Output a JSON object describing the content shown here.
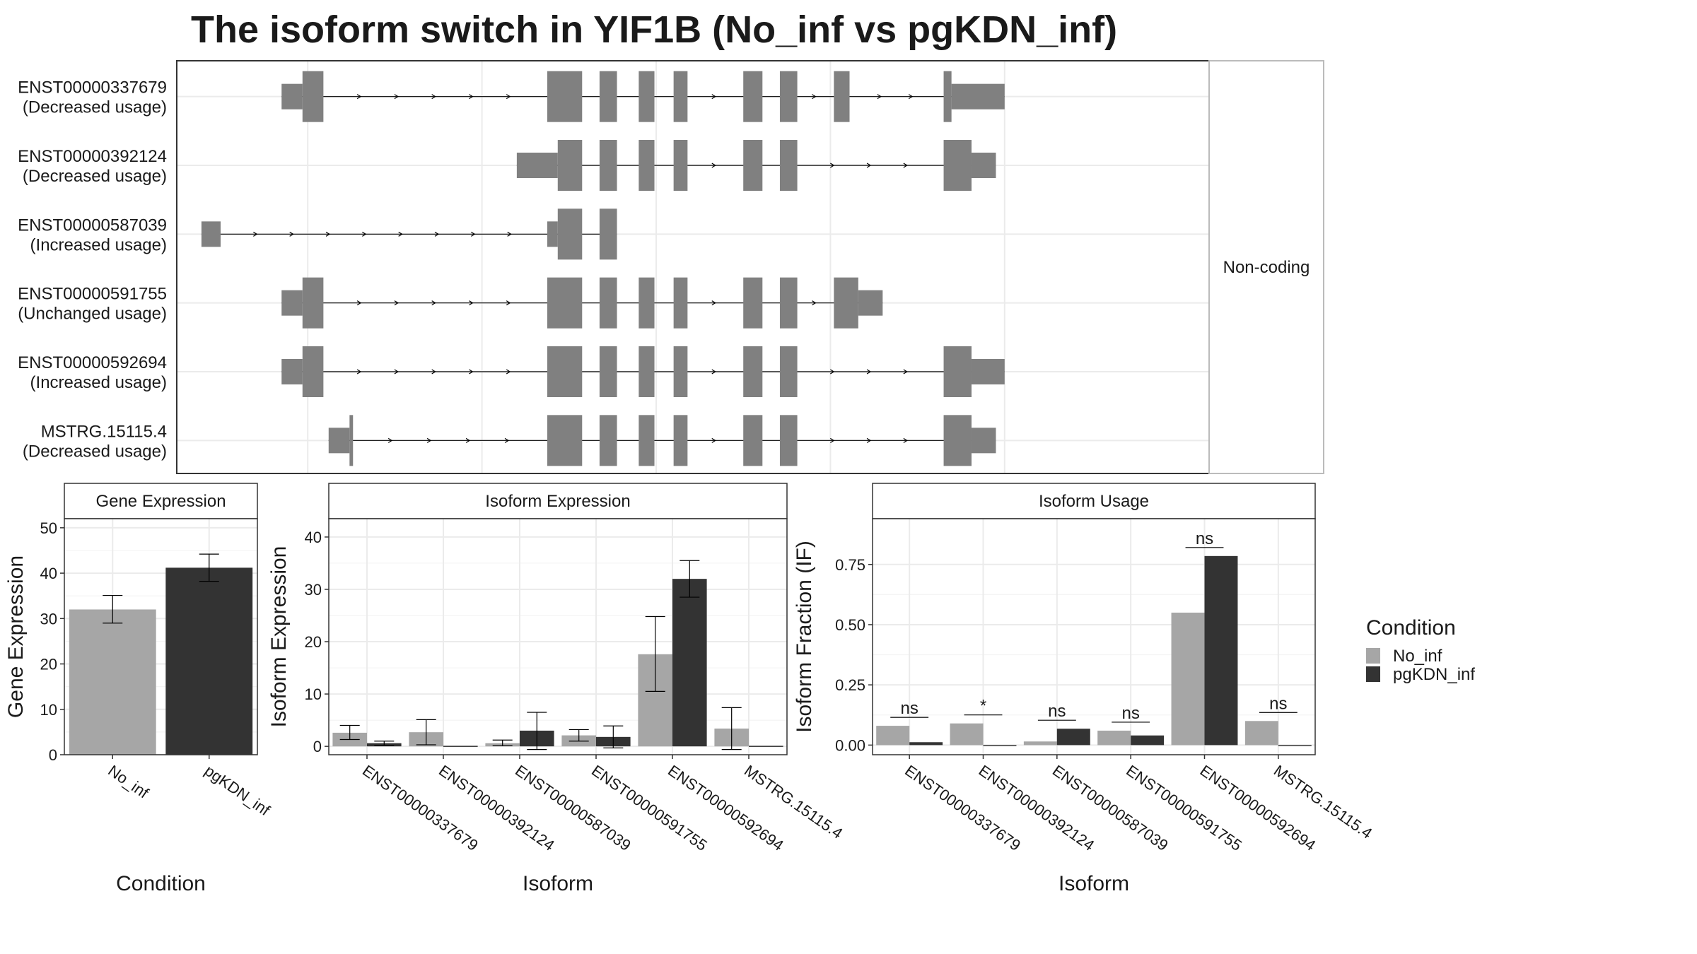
{
  "title": "The isoform switch in YIF1B (No_inf vs pgKDN_inf)",
  "colors": {
    "No_inf": "#a6a6a6",
    "pgKDN_inf": "#333333",
    "exon": "#808080",
    "grid": "#ebebeb",
    "panel_border": "#333333"
  },
  "transcript_panel": {
    "coding_label": "Non-coding",
    "x_range": [
      0,
      100
    ],
    "x_gridlines": [
      10,
      30,
      50,
      70,
      90
    ],
    "transcripts": [
      {
        "id": "ENST00000337679",
        "usage": "(Decreased usage)",
        "exons": [
          [
            7,
            9.4,
            0.5
          ],
          [
            9.4,
            11.8,
            1
          ],
          [
            37.5,
            41.5,
            1
          ],
          [
            43.5,
            45.5,
            1
          ],
          [
            48,
            49.8,
            1
          ],
          [
            52,
            53.6,
            1
          ],
          [
            60,
            62.2,
            1
          ],
          [
            64.2,
            66.2,
            1
          ],
          [
            70.4,
            72.2,
            1
          ],
          [
            83,
            83.9,
            1
          ],
          [
            83.9,
            90,
            0.5
          ]
        ],
        "intron_arrows": 13
      },
      {
        "id": "ENST00000392124",
        "usage": "(Decreased usage)",
        "exons": [
          [
            34,
            38.7,
            0.5
          ],
          [
            38.7,
            41.5,
            1
          ],
          [
            43.5,
            45.5,
            1
          ],
          [
            48,
            49.8,
            1
          ],
          [
            52,
            53.6,
            1
          ],
          [
            60,
            62.2,
            1
          ],
          [
            64.2,
            66.2,
            1
          ],
          [
            83,
            86.2,
            1
          ],
          [
            86.2,
            89,
            0.5
          ]
        ],
        "intron_arrows": 8
      },
      {
        "id": "ENST00000587039",
        "usage": "(Increased usage)",
        "exons": [
          [
            -2.2,
            0,
            0.5
          ],
          [
            37.5,
            38.7,
            0.5
          ],
          [
            38.7,
            41.5,
            1
          ],
          [
            43.5,
            45.5,
            1
          ]
        ],
        "intron_arrows": 8
      },
      {
        "id": "ENST00000591755",
        "usage": "(Unchanged usage)",
        "exons": [
          [
            7,
            9.4,
            0.5
          ],
          [
            9.4,
            11.8,
            1
          ],
          [
            37.5,
            41.5,
            1
          ],
          [
            43.5,
            45.5,
            1
          ],
          [
            48,
            49.8,
            1
          ],
          [
            52,
            53.6,
            1
          ],
          [
            60,
            62.2,
            1
          ],
          [
            64.2,
            66.2,
            1
          ],
          [
            70.4,
            73.2,
            1
          ],
          [
            73.2,
            76,
            0.5
          ]
        ],
        "intron_arrows": 8
      },
      {
        "id": "ENST00000592694",
        "usage": "(Increased usage)",
        "exons": [
          [
            7,
            9.4,
            0.5
          ],
          [
            9.4,
            11.8,
            1
          ],
          [
            37.5,
            41.5,
            1
          ],
          [
            43.5,
            45.5,
            1
          ],
          [
            48,
            49.8,
            1
          ],
          [
            52,
            53.6,
            1
          ],
          [
            60,
            62.2,
            1
          ],
          [
            64.2,
            66.2,
            1
          ],
          [
            83,
            86.2,
            1
          ],
          [
            86.2,
            90,
            0.5
          ]
        ],
        "intron_arrows": 13
      },
      {
        "id": "MSTRG.15115.4",
        "usage": "(Decreased usage)",
        "exons": [
          [
            12.4,
            14.8,
            0.5
          ],
          [
            14.8,
            15.2,
            1
          ],
          [
            37.5,
            41.5,
            1
          ],
          [
            43.5,
            45.5,
            1
          ],
          [
            48,
            49.8,
            1
          ],
          [
            52,
            53.6,
            1
          ],
          [
            60,
            62.2,
            1
          ],
          [
            64.2,
            66.2,
            1
          ],
          [
            83,
            86.2,
            1
          ],
          [
            86.2,
            89,
            0.5
          ]
        ],
        "intron_arrows": 12
      }
    ]
  },
  "chart_data": [
    {
      "type": "bar",
      "title": "Gene Expression",
      "xlabel": "Condition",
      "ylabel": "Gene Expression",
      "categories": [
        "No_inf",
        "pgKDN_inf"
      ],
      "values": [
        32,
        41.2
      ],
      "error_bars": [
        [
          29,
          35.1
        ],
        [
          38.2,
          44.2
        ]
      ],
      "ylim": [
        0,
        52
      ],
      "yticks": [
        "0",
        "10",
        "20",
        "30",
        "40",
        "50"
      ],
      "grid": true
    },
    {
      "type": "bar",
      "title": "Isoform Expression",
      "xlabel": "Isoform",
      "ylabel": "Isoform Expression",
      "categories": [
        "ENST00000337679",
        "ENST00000392124",
        "ENST00000587039",
        "ENST00000591755",
        "ENST00000592694",
        "MSTRG.15115.4"
      ],
      "series": [
        {
          "name": "No_inf",
          "values": [
            2.6,
            2.7,
            0.6,
            2.1,
            17.6,
            3.4
          ],
          "error_bars": [
            [
              1.3,
              4.0
            ],
            [
              0.3,
              5.1
            ],
            [
              0.1,
              1.2
            ],
            [
              1.0,
              3.2
            ],
            [
              10.5,
              24.8
            ],
            [
              -0.6,
              7.4
            ]
          ]
        },
        {
          "name": "pgKDN_inf",
          "values": [
            0.6,
            0.1,
            3.0,
            1.8,
            32.0,
            0.1
          ],
          "error_bars": [
            [
              0.2,
              1.0
            ],
            null,
            [
              -0.6,
              6.5
            ],
            [
              -0.3,
              3.9
            ],
            [
              28.5,
              35.5
            ],
            null
          ]
        }
      ],
      "ylim": [
        -1.6,
        43.5
      ],
      "yticks": [
        "0",
        "10",
        "20",
        "30",
        "40"
      ],
      "grid": true
    },
    {
      "type": "bar",
      "title": "Isoform Usage",
      "xlabel": "Isoform",
      "ylabel": "Isoform Fraction (IF)",
      "categories": [
        "ENST00000337679",
        "ENST00000392124",
        "ENST00000587039",
        "ENST00000591755",
        "ENST00000592694",
        "MSTRG.15115.4"
      ],
      "series": [
        {
          "name": "No_inf",
          "values": [
            0.08,
            0.09,
            0.015,
            0.06,
            0.55,
            0.1
          ]
        },
        {
          "name": "pgKDN_inf",
          "values": [
            0.012,
            0.0,
            0.068,
            0.04,
            0.785,
            0.0
          ]
        }
      ],
      "significance": [
        "ns",
        "*",
        "ns",
        "ns",
        "ns",
        "ns"
      ],
      "ylim": [
        -0.04,
        0.94
      ],
      "yticks": [
        "0.00",
        "0.25",
        "0.50",
        "0.75"
      ],
      "grid": true
    }
  ],
  "legend": {
    "title": "Condition",
    "items": [
      "No_inf",
      "pgKDN_inf"
    ]
  }
}
